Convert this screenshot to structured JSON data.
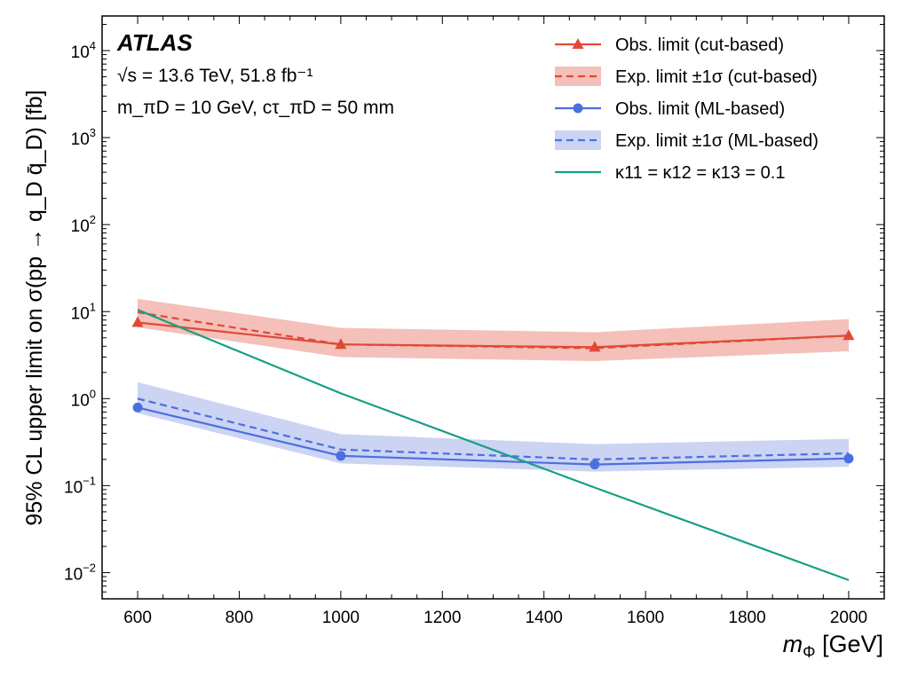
{
  "chart_data": {
    "type": "line",
    "yscale": "log",
    "xlim": [
      530,
      2070
    ],
    "ylim": [
      0.005,
      25000
    ],
    "x_ticks": [
      600,
      800,
      1000,
      1200,
      1400,
      1600,
      1800,
      2000
    ],
    "x_tick_labels": [
      "600",
      "800",
      "1000",
      "1200",
      "1400",
      "1600",
      "1800",
      "2000"
    ],
    "y_ticks": [
      {
        "value": 0.01,
        "base": "10",
        "exp": "−2"
      },
      {
        "value": 0.1,
        "base": "10",
        "exp": "−1"
      },
      {
        "value": 1,
        "base": "10",
        "exp": "0"
      },
      {
        "value": 10,
        "base": "10",
        "exp": "1"
      },
      {
        "value": 100,
        "base": "10",
        "exp": "2"
      },
      {
        "value": 1000,
        "base": "10",
        "exp": "3"
      },
      {
        "value": 10000,
        "base": "10",
        "exp": "4"
      }
    ],
    "xlabel": {
      "main": "m",
      "sub": "Φ",
      "unit": " [GeV]"
    },
    "ylabel": "95% CL upper limit on σ(pp → q_D q̄_D) [fb]",
    "x": [
      600,
      1000,
      1500,
      2000
    ],
    "series": [
      {
        "name": "Obs. limit (cut-based)",
        "kind": "observed",
        "color": "#e04a35",
        "marker": "triangle",
        "values": [
          7.5,
          4.2,
          3.9,
          5.3
        ]
      },
      {
        "name": "Exp. limit ±1σ (cut-based)",
        "kind": "expected",
        "color": "#e04a35",
        "band_color": "#f2b5ad",
        "values": [
          9.8,
          4.2,
          3.8,
          5.3
        ],
        "band_low": [
          6.6,
          3.0,
          2.7,
          3.5
        ],
        "band_high": [
          14.0,
          6.5,
          5.8,
          8.2
        ]
      },
      {
        "name": "Obs. limit (ML-based)",
        "kind": "observed",
        "color": "#4a6fe0",
        "marker": "circle",
        "values": [
          0.79,
          0.22,
          0.175,
          0.205
        ]
      },
      {
        "name": "Exp. limit ±1σ (ML-based)",
        "kind": "expected",
        "color": "#4a6fe0",
        "band_color": "#c3cdf2",
        "values": [
          1.0,
          0.26,
          0.2,
          0.235
        ],
        "band_low": [
          0.68,
          0.18,
          0.145,
          0.165
        ],
        "band_high": [
          1.55,
          0.39,
          0.3,
          0.345
        ]
      },
      {
        "name": "κ11 = κ12 = κ13 = 0.1",
        "kind": "theory",
        "color": "#16a085",
        "x": [
          600,
          1000,
          1500,
          2000
        ],
        "values": [
          10.5,
          1.15,
          0.095,
          0.0082
        ]
      }
    ],
    "legend": {
      "placement": "top-right",
      "entries": [
        "Obs. limit (cut-based)",
        "Exp. limit ±1σ (cut-based)",
        "Obs. limit (ML-based)",
        "Exp. limit ±1σ (ML-based)",
        "κ11 = κ12 = κ13 = 0.1"
      ]
    },
    "annotations": {
      "atlas": "ATLAS",
      "line1": "√s = 13.6 TeV, 51.8 fb⁻¹",
      "line2": "m_πD = 10 GeV, cτ_πD = 50 mm"
    }
  }
}
